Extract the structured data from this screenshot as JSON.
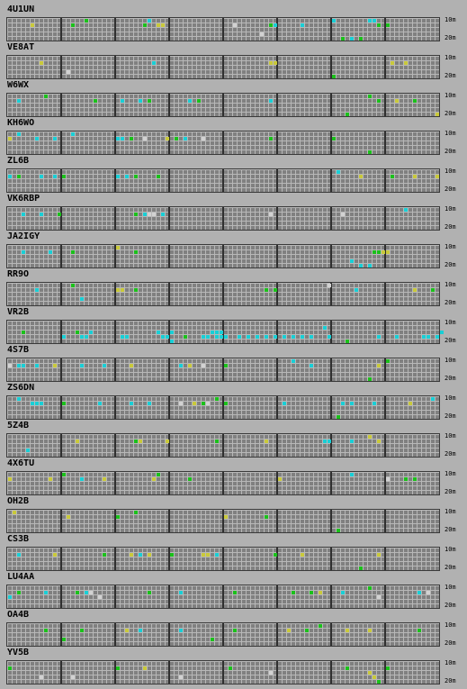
{
  "bands": {
    "top": "10m",
    "bottom": "20m"
  },
  "colors": {
    "green": "#1ac11a",
    "cyan": "#18cfd6",
    "yellow": "#c9c93a",
    "white": "#d2d2d2"
  },
  "beacons": [
    {
      "callsign": "4U1UN",
      "cells": [
        [
          5,
          1,
          "y"
        ],
        [
          14,
          1,
          "g"
        ],
        [
          17,
          0,
          "g"
        ],
        [
          30,
          1,
          "g"
        ],
        [
          31,
          0,
          "c"
        ],
        [
          33,
          1,
          "y"
        ],
        [
          34,
          1,
          "y"
        ],
        [
          50,
          1,
          "w"
        ],
        [
          56,
          3,
          "w"
        ],
        [
          58,
          1,
          "g"
        ],
        [
          59,
          1,
          "c"
        ],
        [
          65,
          1,
          "c"
        ],
        [
          72,
          0,
          "c"
        ],
        [
          74,
          4,
          "g"
        ],
        [
          76,
          4,
          "c"
        ],
        [
          78,
          4,
          "g"
        ],
        [
          80,
          0,
          "c"
        ],
        [
          81,
          0,
          "c"
        ],
        [
          82,
          1,
          "g"
        ],
        [
          84,
          1,
          "g"
        ]
      ]
    },
    {
      "callsign": "VE8AT",
      "cells": [
        [
          7,
          1,
          "y"
        ],
        [
          13,
          3,
          "w"
        ],
        [
          32,
          1,
          "c"
        ],
        [
          58,
          1,
          "y"
        ],
        [
          59,
          1,
          "y"
        ],
        [
          72,
          4,
          "g"
        ],
        [
          85,
          1,
          "y"
        ],
        [
          88,
          1,
          "y"
        ]
      ]
    },
    {
      "callsign": "W6WX",
      "cells": [
        [
          2,
          1,
          "c"
        ],
        [
          8,
          0,
          "g"
        ],
        [
          19,
          1,
          "g"
        ],
        [
          25,
          1,
          "c"
        ],
        [
          29,
          1,
          "c"
        ],
        [
          31,
          1,
          "g"
        ],
        [
          40,
          1,
          "c"
        ],
        [
          42,
          1,
          "g"
        ],
        [
          58,
          1,
          "c"
        ],
        [
          75,
          4,
          "g"
        ],
        [
          80,
          0,
          "g"
        ],
        [
          82,
          1,
          "g"
        ],
        [
          86,
          1,
          "y"
        ],
        [
          90,
          1,
          "g"
        ],
        [
          95,
          4,
          "y"
        ]
      ]
    },
    {
      "callsign": "KH6WO",
      "cells": [
        [
          0,
          1,
          "y"
        ],
        [
          2,
          0,
          "c"
        ],
        [
          6,
          1,
          "c"
        ],
        [
          10,
          1,
          "c"
        ],
        [
          14,
          0,
          "c"
        ],
        [
          24,
          1,
          "c"
        ],
        [
          25,
          1,
          "c"
        ],
        [
          27,
          1,
          "g"
        ],
        [
          30,
          1,
          "w"
        ],
        [
          35,
          1,
          "y"
        ],
        [
          37,
          1,
          "g"
        ],
        [
          39,
          1,
          "c"
        ],
        [
          43,
          1,
          "w"
        ],
        [
          58,
          1,
          "g"
        ],
        [
          72,
          1,
          "g"
        ],
        [
          80,
          4,
          "g"
        ]
      ]
    },
    {
      "callsign": "ZL6B",
      "cells": [
        [
          0,
          1,
          "c"
        ],
        [
          2,
          1,
          "g"
        ],
        [
          7,
          1,
          "c"
        ],
        [
          10,
          1,
          "c"
        ],
        [
          12,
          1,
          "g"
        ],
        [
          24,
          1,
          "c"
        ],
        [
          26,
          1,
          "c"
        ],
        [
          28,
          1,
          "g"
        ],
        [
          33,
          1,
          "g"
        ],
        [
          73,
          0,
          "c"
        ],
        [
          78,
          1,
          "y"
        ],
        [
          85,
          1,
          "g"
        ],
        [
          90,
          1,
          "y"
        ],
        [
          95,
          1,
          "y"
        ]
      ]
    },
    {
      "callsign": "VK6RBP",
      "cells": [
        [
          3,
          1,
          "c"
        ],
        [
          7,
          1,
          "c"
        ],
        [
          11,
          1,
          "g"
        ],
        [
          28,
          1,
          "g"
        ],
        [
          30,
          1,
          "c"
        ],
        [
          31,
          1,
          "w"
        ],
        [
          32,
          1,
          "w"
        ],
        [
          34,
          1,
          "c"
        ],
        [
          58,
          1,
          "w"
        ],
        [
          74,
          1,
          "w"
        ],
        [
          88,
          0,
          "c"
        ]
      ]
    },
    {
      "callsign": "JA2IGY",
      "cells": [
        [
          3,
          1,
          "c"
        ],
        [
          9,
          1,
          "c"
        ],
        [
          14,
          1,
          "g"
        ],
        [
          24,
          0,
          "y"
        ],
        [
          28,
          1,
          "g"
        ],
        [
          76,
          3,
          "c"
        ],
        [
          78,
          4,
          "c"
        ],
        [
          80,
          4,
          "c"
        ],
        [
          81,
          1,
          "g"
        ],
        [
          82,
          1,
          "g"
        ],
        [
          83,
          1,
          "y"
        ],
        [
          84,
          1,
          "y"
        ]
      ]
    },
    {
      "callsign": "RR9O",
      "cells": [
        [
          6,
          1,
          "c"
        ],
        [
          14,
          0,
          "g"
        ],
        [
          16,
          3,
          "c"
        ],
        [
          24,
          1,
          "y"
        ],
        [
          25,
          1,
          "y"
        ],
        [
          28,
          1,
          "g"
        ],
        [
          57,
          1,
          "g"
        ],
        [
          59,
          1,
          "g"
        ],
        [
          71,
          0,
          "w"
        ],
        [
          77,
          1,
          "c"
        ],
        [
          90,
          1,
          "y"
        ],
        [
          94,
          1,
          "g"
        ]
      ]
    },
    {
      "callsign": "VR2B",
      "cells": [
        [
          3,
          2,
          "g"
        ],
        [
          12,
          3,
          "c"
        ],
        [
          15,
          2,
          "g"
        ],
        [
          16,
          3,
          "c"
        ],
        [
          17,
          3,
          "c"
        ],
        [
          18,
          2,
          "c"
        ],
        [
          25,
          3,
          "c"
        ],
        [
          26,
          3,
          "c"
        ],
        [
          33,
          2,
          "c"
        ],
        [
          34,
          3,
          "c"
        ],
        [
          35,
          3,
          "c"
        ],
        [
          36,
          2,
          "c"
        ],
        [
          36,
          4,
          "c"
        ],
        [
          39,
          3,
          "g"
        ],
        [
          43,
          3,
          "c"
        ],
        [
          44,
          3,
          "c"
        ],
        [
          45,
          2,
          "c"
        ],
        [
          46,
          2,
          "c"
        ],
        [
          46,
          3,
          "c"
        ],
        [
          47,
          2,
          "c"
        ],
        [
          47,
          3,
          "c"
        ],
        [
          48,
          3,
          "c"
        ],
        [
          51,
          3,
          "c"
        ],
        [
          53,
          3,
          "c"
        ],
        [
          55,
          3,
          "c"
        ],
        [
          57,
          3,
          "c"
        ],
        [
          59,
          3,
          "c"
        ],
        [
          61,
          3,
          "c"
        ],
        [
          63,
          3,
          "c"
        ],
        [
          65,
          3,
          "c"
        ],
        [
          67,
          3,
          "c"
        ],
        [
          70,
          1,
          "c"
        ],
        [
          71,
          3,
          "c"
        ],
        [
          75,
          4,
          "g"
        ],
        [
          82,
          3,
          "c"
        ],
        [
          86,
          3,
          "c"
        ],
        [
          92,
          3,
          "c"
        ],
        [
          93,
          3,
          "c"
        ],
        [
          95,
          3,
          "c"
        ],
        [
          96,
          2,
          "c"
        ]
      ]
    },
    {
      "callsign": "4S7B",
      "cells": [
        [
          0,
          1,
          "w"
        ],
        [
          2,
          1,
          "c"
        ],
        [
          3,
          1,
          "c"
        ],
        [
          6,
          1,
          "c"
        ],
        [
          10,
          1,
          "y"
        ],
        [
          16,
          1,
          "c"
        ],
        [
          21,
          1,
          "c"
        ],
        [
          27,
          1,
          "y"
        ],
        [
          38,
          1,
          "c"
        ],
        [
          40,
          1,
          "y"
        ],
        [
          43,
          1,
          "w"
        ],
        [
          48,
          1,
          "g"
        ],
        [
          63,
          0,
          "c"
        ],
        [
          67,
          1,
          "c"
        ],
        [
          80,
          4,
          "g"
        ],
        [
          82,
          1,
          "y"
        ],
        [
          84,
          0,
          "g"
        ]
      ]
    },
    {
      "callsign": "ZS6DN",
      "cells": [
        [
          2,
          0,
          "c"
        ],
        [
          5,
          1,
          "c"
        ],
        [
          6,
          1,
          "c"
        ],
        [
          7,
          1,
          "c"
        ],
        [
          12,
          1,
          "g"
        ],
        [
          20,
          1,
          "c"
        ],
        [
          27,
          1,
          "c"
        ],
        [
          31,
          1,
          "c"
        ],
        [
          38,
          1,
          "w"
        ],
        [
          41,
          1,
          "y"
        ],
        [
          43,
          1,
          "g"
        ],
        [
          44,
          1,
          "w"
        ],
        [
          46,
          0,
          "g"
        ],
        [
          48,
          1,
          "g"
        ],
        [
          61,
          1,
          "c"
        ],
        [
          73,
          4,
          "g"
        ],
        [
          74,
          1,
          "c"
        ],
        [
          76,
          1,
          "c"
        ],
        [
          81,
          1,
          "c"
        ],
        [
          89,
          1,
          "y"
        ],
        [
          94,
          0,
          "c"
        ]
      ]
    },
    {
      "callsign": "5Z4B",
      "cells": [
        [
          4,
          3,
          "c"
        ],
        [
          15,
          1,
          "y"
        ],
        [
          28,
          1,
          "g"
        ],
        [
          29,
          1,
          "y"
        ],
        [
          35,
          1,
          "y"
        ],
        [
          46,
          1,
          "g"
        ],
        [
          57,
          1,
          "y"
        ],
        [
          70,
          1,
          "c"
        ],
        [
          71,
          1,
          "c"
        ],
        [
          76,
          1,
          "c"
        ],
        [
          80,
          0,
          "y"
        ],
        [
          82,
          1,
          "y"
        ]
      ]
    },
    {
      "callsign": "4X6TU",
      "cells": [
        [
          0,
          1,
          "y"
        ],
        [
          9,
          1,
          "y"
        ],
        [
          12,
          0,
          "g"
        ],
        [
          16,
          1,
          "c"
        ],
        [
          21,
          1,
          "y"
        ],
        [
          32,
          1,
          "y"
        ],
        [
          33,
          0,
          "g"
        ],
        [
          40,
          1,
          "g"
        ],
        [
          60,
          1,
          "y"
        ],
        [
          76,
          0,
          "c"
        ],
        [
          84,
          1,
          "w"
        ],
        [
          88,
          1,
          "g"
        ],
        [
          90,
          1,
          "g"
        ]
      ]
    },
    {
      "callsign": "OH2B",
      "cells": [
        [
          1,
          0,
          "y"
        ],
        [
          13,
          1,
          "y"
        ],
        [
          24,
          1,
          "g"
        ],
        [
          28,
          0,
          "g"
        ],
        [
          48,
          1,
          "y"
        ],
        [
          57,
          1,
          "g"
        ],
        [
          73,
          4,
          "g"
        ]
      ]
    },
    {
      "callsign": "CS3B",
      "cells": [
        [
          2,
          1,
          "c"
        ],
        [
          10,
          1,
          "y"
        ],
        [
          21,
          1,
          "g"
        ],
        [
          27,
          1,
          "y"
        ],
        [
          29,
          1,
          "c"
        ],
        [
          31,
          1,
          "y"
        ],
        [
          36,
          1,
          "g"
        ],
        [
          43,
          1,
          "y"
        ],
        [
          44,
          1,
          "y"
        ],
        [
          46,
          1,
          "c"
        ],
        [
          59,
          1,
          "g"
        ],
        [
          65,
          1,
          "y"
        ],
        [
          78,
          4,
          "g"
        ],
        [
          82,
          1,
          "y"
        ]
      ]
    },
    {
      "callsign": "LU4AA",
      "cells": [
        [
          0,
          2,
          "c"
        ],
        [
          2,
          1,
          "g"
        ],
        [
          8,
          1,
          "c"
        ],
        [
          15,
          1,
          "g"
        ],
        [
          17,
          1,
          "c"
        ],
        [
          18,
          1,
          "w"
        ],
        [
          20,
          2,
          "w"
        ],
        [
          31,
          1,
          "g"
        ],
        [
          38,
          1,
          "c"
        ],
        [
          50,
          1,
          "g"
        ],
        [
          63,
          1,
          "g"
        ],
        [
          67,
          1,
          "g"
        ],
        [
          69,
          1,
          "y"
        ],
        [
          74,
          1,
          "c"
        ],
        [
          80,
          0,
          "g"
        ],
        [
          82,
          2,
          "w"
        ],
        [
          91,
          1,
          "c"
        ],
        [
          93,
          1,
          "w"
        ]
      ]
    },
    {
      "callsign": "OA4B",
      "cells": [
        [
          8,
          1,
          "g"
        ],
        [
          12,
          3,
          "g"
        ],
        [
          16,
          1,
          "g"
        ],
        [
          26,
          1,
          "y"
        ],
        [
          29,
          1,
          "c"
        ],
        [
          38,
          1,
          "c"
        ],
        [
          45,
          3,
          "g"
        ],
        [
          50,
          1,
          "g"
        ],
        [
          62,
          1,
          "y"
        ],
        [
          66,
          1,
          "g"
        ],
        [
          69,
          0,
          "g"
        ],
        [
          75,
          1,
          "y"
        ],
        [
          80,
          1,
          "y"
        ],
        [
          91,
          1,
          "g"
        ]
      ]
    },
    {
      "callsign": "YV5B",
      "cells": [
        [
          0,
          1,
          "g"
        ],
        [
          7,
          3,
          "w"
        ],
        [
          14,
          3,
          "w"
        ],
        [
          24,
          1,
          "g"
        ],
        [
          30,
          1,
          "y"
        ],
        [
          38,
          3,
          "w"
        ],
        [
          49,
          1,
          "g"
        ],
        [
          58,
          2,
          "w"
        ],
        [
          75,
          1,
          "g"
        ],
        [
          80,
          2,
          "y"
        ],
        [
          81,
          3,
          "y"
        ],
        [
          82,
          4,
          "g"
        ],
        [
          84,
          1,
          "g"
        ]
      ]
    }
  ]
}
